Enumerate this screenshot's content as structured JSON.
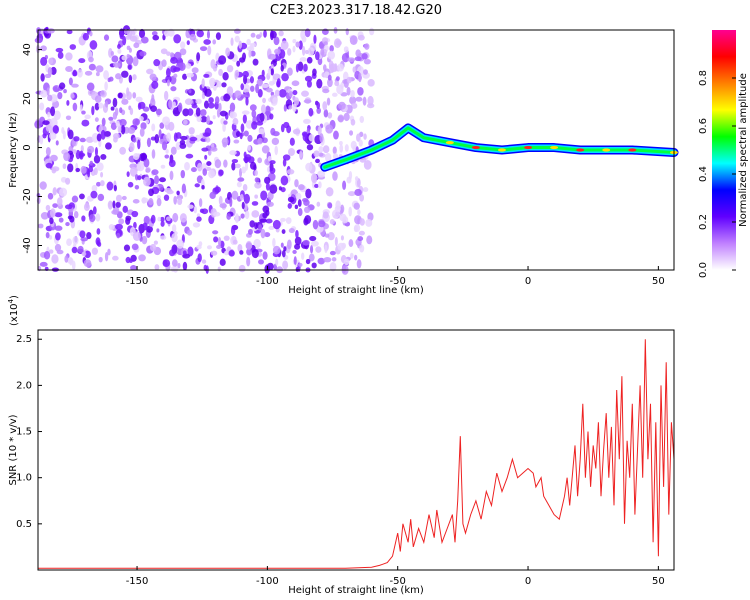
{
  "figure": {
    "title": "C2E3.2023.317.18.42.G20"
  },
  "chart_data": [
    {
      "type": "heatmap",
      "title": "C2E3.2023.317.18.42.G20",
      "xlabel": "Height of straight line (km)",
      "ylabel": "Frequency (Hz)",
      "xlim": [
        -188,
        56
      ],
      "ylim": [
        -50,
        48
      ],
      "x_ticks": [
        -150,
        -100,
        -50,
        0,
        50
      ],
      "y_ticks": [
        -40,
        -20,
        0,
        20,
        40
      ],
      "noise_region_x": [
        -188,
        -60
      ],
      "signal_track": [
        {
          "x": -78,
          "y": -8
        },
        {
          "x": -70,
          "y": -5
        },
        {
          "x": -60,
          "y": -1
        },
        {
          "x": -52,
          "y": 3
        },
        {
          "x": -46,
          "y": 8
        },
        {
          "x": -40,
          "y": 4
        },
        {
          "x": -30,
          "y": 2
        },
        {
          "x": -20,
          "y": 0
        },
        {
          "x": -10,
          "y": -1
        },
        {
          "x": 0,
          "y": 0
        },
        {
          "x": 10,
          "y": 0
        },
        {
          "x": 20,
          "y": -1
        },
        {
          "x": 30,
          "y": -1
        },
        {
          "x": 40,
          "y": -1
        },
        {
          "x": 56,
          "y": -2
        }
      ],
      "colorbar": {
        "label": "Normalized spectral amplitude",
        "range": [
          0,
          1
        ],
        "ticks": [
          "0.0",
          "0.2",
          "0.4",
          "0.6",
          "0.8"
        ],
        "colors": [
          "#ffffff",
          "#c080ff",
          "#6000ff",
          "#0000ff",
          "#00ffff",
          "#00ff00",
          "#ffff00",
          "#ff8000",
          "#ff0000",
          "#ff0090"
        ]
      }
    },
    {
      "type": "line",
      "xlabel": "Height of straight line (km)",
      "ylabel": "SNR (10 * v/v)",
      "y_multiplier": "(x10",
      "y_multiplier_exp": "4",
      "y_multiplier_close": ")",
      "xlim": [
        -188,
        56
      ],
      "ylim": [
        0,
        2.6
      ],
      "x_ticks": [
        -150,
        -100,
        -50,
        0,
        50
      ],
      "y_ticks": [
        "0.5",
        "1.0",
        "1.5",
        "2.0",
        "2.5"
      ],
      "series": [
        {
          "color": "#ee2222",
          "points": [
            [
              -188,
              0.02
            ],
            [
              -170,
              0.02
            ],
            [
              -150,
              0.02
            ],
            [
              -130,
              0.02
            ],
            [
              -110,
              0.02
            ],
            [
              -90,
              0.02
            ],
            [
              -70,
              0.02
            ],
            [
              -60,
              0.03
            ],
            [
              -57,
              0.05
            ],
            [
              -54,
              0.08
            ],
            [
              -52,
              0.15
            ],
            [
              -50,
              0.4
            ],
            [
              -49,
              0.2
            ],
            [
              -48,
              0.5
            ],
            [
              -46,
              0.3
            ],
            [
              -45,
              0.55
            ],
            [
              -44,
              0.25
            ],
            [
              -42,
              0.45
            ],
            [
              -40,
              0.3
            ],
            [
              -38,
              0.6
            ],
            [
              -36,
              0.35
            ],
            [
              -35,
              0.65
            ],
            [
              -33,
              0.3
            ],
            [
              -31,
              0.45
            ],
            [
              -29,
              0.6
            ],
            [
              -28,
              0.3
            ],
            [
              -27,
              0.75
            ],
            [
              -26,
              1.45
            ],
            [
              -25,
              0.5
            ],
            [
              -24,
              0.4
            ],
            [
              -22,
              0.6
            ],
            [
              -20,
              0.75
            ],
            [
              -18,
              0.55
            ],
            [
              -16,
              0.85
            ],
            [
              -14,
              0.7
            ],
            [
              -12,
              1.05
            ],
            [
              -10,
              0.85
            ],
            [
              -8,
              1.0
            ],
            [
              -6,
              1.2
            ],
            [
              -4,
              1.0
            ],
            [
              -2,
              1.05
            ],
            [
              0,
              1.1
            ],
            [
              2,
              1.05
            ],
            [
              3,
              0.9
            ],
            [
              5,
              1.0
            ],
            [
              6,
              0.8
            ],
            [
              8,
              0.7
            ],
            [
              10,
              0.6
            ],
            [
              12,
              0.55
            ],
            [
              14,
              0.8
            ],
            [
              15,
              1.0
            ],
            [
              16,
              0.7
            ],
            [
              18,
              1.35
            ],
            [
              19,
              0.8
            ],
            [
              20,
              1.2
            ],
            [
              21,
              1.8
            ],
            [
              22,
              1.0
            ],
            [
              23,
              1.5
            ],
            [
              24,
              0.9
            ],
            [
              25,
              1.35
            ],
            [
              26,
              1.1
            ],
            [
              27,
              1.6
            ],
            [
              28,
              0.8
            ],
            [
              29,
              1.3
            ],
            [
              30,
              1.7
            ],
            [
              31,
              1.0
            ],
            [
              32,
              1.55
            ],
            [
              33,
              0.7
            ],
            [
              34,
              1.95
            ],
            [
              35,
              1.2
            ],
            [
              36,
              2.1
            ],
            [
              37,
              0.5
            ],
            [
              38,
              1.4
            ],
            [
              39,
              1.0
            ],
            [
              40,
              1.8
            ],
            [
              41,
              0.6
            ],
            [
              42,
              1.3
            ],
            [
              43,
              2.0
            ],
            [
              44,
              1.0
            ],
            [
              45,
              2.5
            ],
            [
              46,
              1.2
            ],
            [
              47,
              1.8
            ],
            [
              48,
              0.3
            ],
            [
              49,
              1.6
            ],
            [
              50,
              0.15
            ],
            [
              51,
              2.0
            ],
            [
              52,
              0.9
            ],
            [
              53,
              2.25
            ],
            [
              54,
              0.6
            ],
            [
              55,
              1.6
            ],
            [
              56,
              1.2
            ]
          ]
        }
      ]
    }
  ]
}
